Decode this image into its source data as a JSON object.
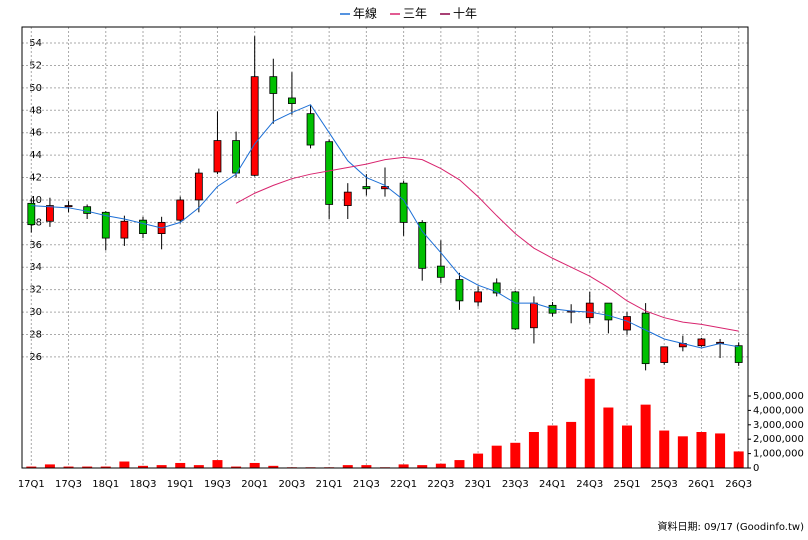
{
  "chart_data": {
    "type": "candlestick",
    "legend": "top",
    "grid": true,
    "categories": [
      "17Q1",
      null,
      "17Q3",
      null,
      "18Q1",
      null,
      "18Q3",
      null,
      "19Q1",
      null,
      "19Q3",
      null,
      "20Q1",
      null,
      "20Q3",
      null,
      "21Q1",
      null,
      "21Q3",
      null,
      "22Q1",
      null,
      "22Q3",
      null,
      "23Q1",
      null,
      "23Q3",
      null,
      "24Q1",
      null,
      "24Q3",
      null,
      "25Q1",
      null,
      "25Q3",
      null,
      "26Q1",
      null,
      "26Q3"
    ],
    "open": [
      39.7,
      38.1,
      39.4,
      39.4,
      38.9,
      36.6,
      38.2,
      37.0,
      38.2,
      40.0,
      42.5,
      45.3,
      42.2,
      51.0,
      49.1,
      47.7,
      45.2,
      39.5,
      41.2,
      41.0,
      41.5,
      38.0,
      34.1,
      32.9,
      30.9,
      32.6,
      31.8,
      28.6,
      30.6,
      30.0,
      29.5,
      30.8,
      28.4,
      29.9,
      25.5,
      26.9,
      27.0,
      27.2,
      27.0
    ],
    "high": [
      40.1,
      40.2,
      39.9,
      39.6,
      39.0,
      38.6,
      38.5,
      38.5,
      40.3,
      42.8,
      47.9,
      46.1,
      54.6,
      52.6,
      51.4,
      48.5,
      45.4,
      41.5,
      42.3,
      42.9,
      41.7,
      38.2,
      36.4,
      33.5,
      32.3,
      33.0,
      31.9,
      31.4,
      30.9,
      30.7,
      31.8,
      30.8,
      30.0,
      30.8,
      26.9,
      27.9,
      27.7,
      27.6,
      27.3
    ],
    "low": [
      37.1,
      37.6,
      38.9,
      38.3,
      35.5,
      35.9,
      36.6,
      35.6,
      37.9,
      38.9,
      42.3,
      42.0,
      42.1,
      46.8,
      47.6,
      44.6,
      38.3,
      38.3,
      40.4,
      40.3,
      36.8,
      32.8,
      32.6,
      30.2,
      30.5,
      31.4,
      28.4,
      27.2,
      29.6,
      29.0,
      29.0,
      28.1,
      28.0,
      24.8,
      25.3,
      26.5,
      26.9,
      25.9,
      25.2
    ],
    "close": [
      37.8,
      39.5,
      39.5,
      38.8,
      36.6,
      38.1,
      37.0,
      38.0,
      40.0,
      42.4,
      45.3,
      42.4,
      51.0,
      49.5,
      48.6,
      44.9,
      39.6,
      40.7,
      41.0,
      41.2,
      38.0,
      33.9,
      33.1,
      31.0,
      31.8,
      31.7,
      28.5,
      30.8,
      29.9,
      30.1,
      30.8,
      29.3,
      29.6,
      25.4,
      26.9,
      27.2,
      27.6,
      27.3,
      25.5
    ],
    "up_color": "#ff0000",
    "down_color": "#00c000",
    "series": [
      {
        "name": "年線",
        "color": "#1c6fd6",
        "values": [
          39.5,
          39.4,
          39.3,
          39.0,
          38.6,
          38.3,
          37.9,
          37.5,
          38.0,
          39.3,
          41.2,
          42.3,
          45.0,
          47.0,
          47.8,
          48.5,
          46.0,
          43.5,
          42.0,
          41.3,
          40.0,
          37.2,
          35.3,
          33.3,
          32.4,
          31.8,
          30.8,
          30.8,
          30.3,
          30.1,
          30.0,
          29.7,
          29.2,
          28.4,
          27.6,
          27.2,
          26.8,
          27.2,
          26.9
        ]
      },
      {
        "name": "三年",
        "color": "#d8246e",
        "values": [
          null,
          null,
          null,
          null,
          null,
          null,
          null,
          null,
          null,
          null,
          null,
          39.7,
          40.6,
          41.3,
          41.9,
          42.3,
          42.6,
          42.9,
          43.2,
          43.6,
          43.8,
          43.6,
          42.8,
          41.8,
          40.3,
          38.6,
          37.0,
          35.7,
          34.8,
          34.0,
          33.2,
          32.2,
          31.0,
          30.1,
          29.5,
          29.1,
          28.9,
          28.6,
          28.3
        ]
      },
      {
        "name": "十年",
        "color": "#8b0046",
        "values": [
          null,
          null,
          null,
          null,
          null,
          null,
          null,
          null,
          null,
          null,
          null,
          null,
          null,
          null,
          null,
          null,
          null,
          null,
          null,
          null,
          null,
          null,
          null,
          null,
          null,
          null,
          null,
          null,
          null,
          null,
          null,
          null,
          null,
          null,
          null,
          null,
          null,
          null,
          null
        ]
      }
    ],
    "volume": {
      "color": "#ff0000",
      "axis": "y2",
      "values": [
        100000,
        250000,
        100000,
        100000,
        100000,
        450000,
        150000,
        200000,
        350000,
        200000,
        550000,
        100000,
        350000,
        150000,
        50000,
        50000,
        50000,
        200000,
        200000,
        50000,
        250000,
        200000,
        300000,
        550000,
        1000000,
        1550000,
        1750000,
        2500000,
        2950000,
        3200000,
        6200000,
        4200000,
        2950000,
        4400000,
        2600000,
        2200000,
        2500000,
        2400000,
        1150000
      ]
    },
    "ylim": [
      16.09,
      55.43
    ],
    "yticks": [
      26,
      28,
      30,
      32,
      34,
      36,
      38,
      40,
      42,
      44,
      46,
      48,
      50,
      52,
      54
    ],
    "y2lim": [
      0,
      30625000
    ],
    "y2ticks": [
      0,
      {
        "value": 1000000,
        "label": "1,000,000"
      },
      {
        "value": 2000000,
        "label": "2,000,000"
      },
      {
        "value": 3000000,
        "label": "3,000,000"
      },
      {
        "value": 4000000,
        "label": "4,000,000"
      },
      {
        "value": 5000000,
        "label": "5,000,000"
      }
    ]
  },
  "footer": "資料日期: 09/17  (Goodinfo.tw)"
}
